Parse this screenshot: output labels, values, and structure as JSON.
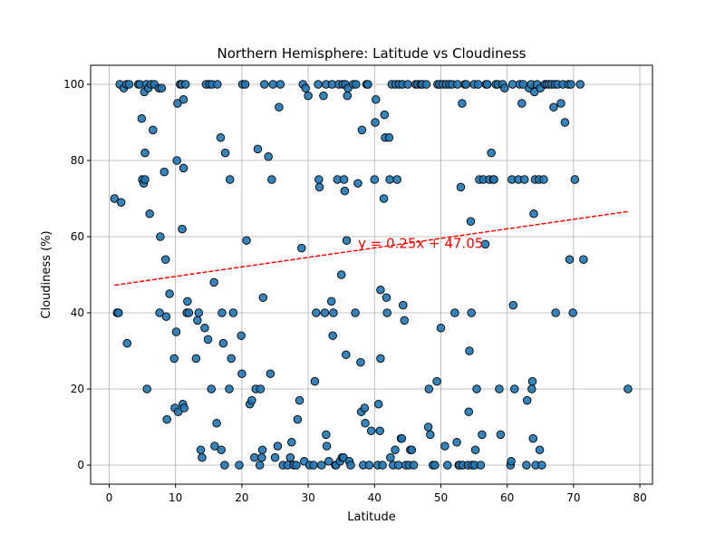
{
  "chart_data": {
    "type": "scatter",
    "title": "Northern Hemisphere: Latitude vs Cloudiness",
    "xlabel": "Latitude",
    "ylabel": "Cloudiness (%)",
    "xlim": [
      -2.8,
      81.9
    ],
    "ylim": [
      -5,
      105
    ],
    "xticks": [
      0,
      10,
      20,
      30,
      40,
      50,
      60,
      70,
      80
    ],
    "yticks": [
      0,
      20,
      40,
      60,
      80,
      100
    ],
    "grid": true,
    "point_color": "#1f77b4",
    "line_color": "#ff0000",
    "regression": {
      "label": "y = 0.25x + 47.05",
      "slope": 0.25,
      "intercept": 47.05,
      "x_range": [
        0.8,
        78.2
      ],
      "label_at": [
        37.5,
        57.0
      ]
    },
    "points": [
      [
        0.8,
        70
      ],
      [
        1.2,
        40
      ],
      [
        1.4,
        40
      ],
      [
        1.6,
        100
      ],
      [
        1.8,
        69
      ],
      [
        2.2,
        99
      ],
      [
        2.6,
        100
      ],
      [
        2.7,
        32
      ],
      [
        3.0,
        100
      ],
      [
        4.4,
        100
      ],
      [
        4.6,
        100
      ],
      [
        4.9,
        91
      ],
      [
        5.0,
        75
      ],
      [
        5.2,
        74
      ],
      [
        5.3,
        98
      ],
      [
        5.4,
        75
      ],
      [
        5.4,
        82
      ],
      [
        5.6,
        100
      ],
      [
        5.7,
        20
      ],
      [
        5.9,
        99
      ],
      [
        6.1,
        66
      ],
      [
        6.3,
        100
      ],
      [
        6.6,
        88
      ],
      [
        6.8,
        100
      ],
      [
        7.5,
        99
      ],
      [
        7.6,
        40
      ],
      [
        7.7,
        60
      ],
      [
        7.9,
        99
      ],
      [
        8.3,
        77
      ],
      [
        8.5,
        54
      ],
      [
        8.6,
        39
      ],
      [
        8.7,
        12
      ],
      [
        9.1,
        45
      ],
      [
        9.8,
        28
      ],
      [
        9.9,
        15
      ],
      [
        10.1,
        35
      ],
      [
        10.2,
        80
      ],
      [
        10.3,
        95
      ],
      [
        10.4,
        14
      ],
      [
        10.7,
        100
      ],
      [
        10.9,
        100
      ],
      [
        11.0,
        62
      ],
      [
        11.1,
        16
      ],
      [
        11.2,
        78
      ],
      [
        11.2,
        96
      ],
      [
        11.3,
        15
      ],
      [
        11.5,
        100
      ],
      [
        11.7,
        40
      ],
      [
        11.8,
        43
      ],
      [
        12.0,
        40
      ],
      [
        13.1,
        28
      ],
      [
        13.3,
        38
      ],
      [
        13.5,
        40
      ],
      [
        13.8,
        4
      ],
      [
        14.0,
        2
      ],
      [
        14.4,
        36
      ],
      [
        14.6,
        100
      ],
      [
        14.9,
        33
      ],
      [
        15.1,
        100
      ],
      [
        15.4,
        20
      ],
      [
        15.5,
        100
      ],
      [
        15.8,
        48
      ],
      [
        15.9,
        5
      ],
      [
        16.2,
        11
      ],
      [
        16.3,
        100
      ],
      [
        16.8,
        86
      ],
      [
        16.9,
        4
      ],
      [
        17.0,
        40
      ],
      [
        17.2,
        32
      ],
      [
        17.4,
        0
      ],
      [
        17.5,
        82
      ],
      [
        18.1,
        20
      ],
      [
        18.2,
        75
      ],
      [
        18.4,
        28
      ],
      [
        18.7,
        40
      ],
      [
        19.6,
        0
      ],
      [
        19.9,
        34
      ],
      [
        20.0,
        24
      ],
      [
        20.1,
        100
      ],
      [
        20.5,
        100
      ],
      [
        20.7,
        59
      ],
      [
        21.2,
        16
      ],
      [
        21.5,
        17
      ],
      [
        21.9,
        2
      ],
      [
        22.1,
        20
      ],
      [
        22.4,
        83
      ],
      [
        22.7,
        0
      ],
      [
        22.8,
        20
      ],
      [
        23.0,
        2
      ],
      [
        23.1,
        4
      ],
      [
        23.2,
        44
      ],
      [
        23.4,
        100
      ],
      [
        24.0,
        81
      ],
      [
        24.3,
        24
      ],
      [
        24.5,
        75
      ],
      [
        24.7,
        100
      ],
      [
        25.0,
        2
      ],
      [
        25.4,
        5
      ],
      [
        25.6,
        94
      ],
      [
        25.8,
        100
      ],
      [
        26.2,
        0
      ],
      [
        26.9,
        0
      ],
      [
        27.3,
        2
      ],
      [
        27.5,
        6
      ],
      [
        27.8,
        0
      ],
      [
        28.2,
        0
      ],
      [
        28.4,
        12
      ],
      [
        28.7,
        17
      ],
      [
        29.0,
        57
      ],
      [
        29.2,
        100
      ],
      [
        29.4,
        1
      ],
      [
        29.6,
        99
      ],
      [
        30.0,
        97
      ],
      [
        30.2,
        0
      ],
      [
        30.8,
        0
      ],
      [
        31.0,
        22
      ],
      [
        31.2,
        40
      ],
      [
        31.5,
        100
      ],
      [
        31.6,
        75
      ],
      [
        31.7,
        73
      ],
      [
        32.0,
        0
      ],
      [
        32.3,
        97
      ],
      [
        32.5,
        40
      ],
      [
        32.7,
        100
      ],
      [
        32.7,
        8
      ],
      [
        32.8,
        5
      ],
      [
        33.1,
        1
      ],
      [
        33.5,
        43
      ],
      [
        33.6,
        100
      ],
      [
        33.7,
        34
      ],
      [
        33.8,
        40
      ],
      [
        34.1,
        0
      ],
      [
        34.2,
        0
      ],
      [
        34.4,
        75
      ],
      [
        34.6,
        100
      ],
      [
        34.8,
        1
      ],
      [
        35.0,
        50
      ],
      [
        35.1,
        2
      ],
      [
        35.2,
        100
      ],
      [
        35.3,
        2
      ],
      [
        35.4,
        75
      ],
      [
        35.5,
        72
      ],
      [
        35.6,
        100
      ],
      [
        35.7,
        29
      ],
      [
        35.8,
        59
      ],
      [
        35.9,
        97
      ],
      [
        36.0,
        99
      ],
      [
        36.2,
        1
      ],
      [
        36.4,
        0
      ],
      [
        36.8,
        100
      ],
      [
        37.1,
        40
      ],
      [
        37.2,
        100
      ],
      [
        37.5,
        74
      ],
      [
        37.9,
        27
      ],
      [
        38.0,
        14
      ],
      [
        38.1,
        88
      ],
      [
        38.3,
        0
      ],
      [
        38.5,
        15
      ],
      [
        38.6,
        11
      ],
      [
        38.8,
        100
      ],
      [
        39.0,
        100
      ],
      [
        39.2,
        0
      ],
      [
        39.5,
        9
      ],
      [
        40.0,
        75
      ],
      [
        40.1,
        90
      ],
      [
        40.2,
        96
      ],
      [
        40.5,
        0
      ],
      [
        40.6,
        16
      ],
      [
        40.8,
        9
      ],
      [
        40.9,
        46
      ],
      [
        40.9,
        28
      ],
      [
        41.2,
        0
      ],
      [
        41.4,
        70
      ],
      [
        41.5,
        92
      ],
      [
        41.6,
        86
      ],
      [
        41.8,
        44
      ],
      [
        41.9,
        40
      ],
      [
        42.2,
        86
      ],
      [
        42.3,
        75
      ],
      [
        42.4,
        2
      ],
      [
        42.6,
        100
      ],
      [
        42.8,
        0
      ],
      [
        43.1,
        4
      ],
      [
        43.2,
        100
      ],
      [
        43.4,
        75
      ],
      [
        43.6,
        0
      ],
      [
        43.7,
        100
      ],
      [
        44.0,
        7
      ],
      [
        44.1,
        7
      ],
      [
        44.2,
        100
      ],
      [
        44.3,
        42
      ],
      [
        44.5,
        38
      ],
      [
        44.7,
        0
      ],
      [
        45.0,
        100
      ],
      [
        45.2,
        0
      ],
      [
        45.4,
        4
      ],
      [
        45.6,
        4
      ],
      [
        45.9,
        0
      ],
      [
        46.2,
        100
      ],
      [
        46.5,
        100
      ],
      [
        47.0,
        100
      ],
      [
        47.2,
        100
      ],
      [
        47.8,
        100
      ],
      [
        48.1,
        10
      ],
      [
        48.2,
        20
      ],
      [
        48.4,
        8
      ],
      [
        48.8,
        0
      ],
      [
        49.1,
        0
      ],
      [
        49.4,
        22
      ],
      [
        49.5,
        100
      ],
      [
        49.8,
        100
      ],
      [
        50.0,
        36
      ],
      [
        50.3,
        100
      ],
      [
        50.6,
        5
      ],
      [
        50.8,
        100
      ],
      [
        51.0,
        0
      ],
      [
        51.3,
        100
      ],
      [
        51.7,
        100
      ],
      [
        52.1,
        40
      ],
      [
        52.4,
        6
      ],
      [
        52.5,
        100
      ],
      [
        52.7,
        0
      ],
      [
        52.8,
        0
      ],
      [
        53.0,
        73
      ],
      [
        53.2,
        95
      ],
      [
        53.3,
        0
      ],
      [
        53.6,
        100
      ],
      [
        53.8,
        100
      ],
      [
        54.1,
        0
      ],
      [
        54.2,
        14
      ],
      [
        54.3,
        30
      ],
      [
        54.5,
        64
      ],
      [
        54.6,
        40
      ],
      [
        54.7,
        0
      ],
      [
        55.0,
        100
      ],
      [
        55.1,
        0
      ],
      [
        55.2,
        4
      ],
      [
        55.4,
        20
      ],
      [
        55.6,
        100
      ],
      [
        55.8,
        75
      ],
      [
        56.0,
        0
      ],
      [
        56.2,
        8
      ],
      [
        56.4,
        75
      ],
      [
        56.7,
        58
      ],
      [
        56.8,
        100
      ],
      [
        57.0,
        100
      ],
      [
        57.3,
        75
      ],
      [
        57.6,
        82
      ],
      [
        57.9,
        75
      ],
      [
        58.0,
        75
      ],
      [
        58.3,
        100
      ],
      [
        58.6,
        100
      ],
      [
        58.8,
        20
      ],
      [
        59.0,
        8
      ],
      [
        59.3,
        100
      ],
      [
        59.6,
        99
      ],
      [
        60.5,
        0
      ],
      [
        60.6,
        1
      ],
      [
        60.7,
        75
      ],
      [
        60.8,
        100
      ],
      [
        60.9,
        42
      ],
      [
        61.1,
        20
      ],
      [
        61.7,
        75
      ],
      [
        61.9,
        100
      ],
      [
        62.2,
        95
      ],
      [
        62.4,
        100
      ],
      [
        62.6,
        75
      ],
      [
        62.9,
        0
      ],
      [
        63.0,
        17
      ],
      [
        63.3,
        99
      ],
      [
        63.6,
        100
      ],
      [
        63.7,
        20
      ],
      [
        63.8,
        22
      ],
      [
        63.9,
        7
      ],
      [
        64.0,
        66
      ],
      [
        64.1,
        98
      ],
      [
        64.2,
        75
      ],
      [
        64.3,
        0
      ],
      [
        64.5,
        100
      ],
      [
        64.8,
        75
      ],
      [
        64.9,
        4
      ],
      [
        65.0,
        99
      ],
      [
        65.2,
        0
      ],
      [
        65.5,
        75
      ],
      [
        65.7,
        100
      ],
      [
        66.0,
        100
      ],
      [
        66.3,
        100
      ],
      [
        66.7,
        100
      ],
      [
        67.0,
        94
      ],
      [
        67.2,
        100
      ],
      [
        67.3,
        40
      ],
      [
        67.6,
        100
      ],
      [
        68.1,
        95
      ],
      [
        68.4,
        100
      ],
      [
        68.7,
        90
      ],
      [
        69.2,
        100
      ],
      [
        69.4,
        54
      ],
      [
        69.6,
        100
      ],
      [
        69.9,
        40
      ],
      [
        70.2,
        75
      ],
      [
        71.0,
        100
      ],
      [
        71.5,
        54
      ],
      [
        78.2,
        20
      ]
    ]
  }
}
